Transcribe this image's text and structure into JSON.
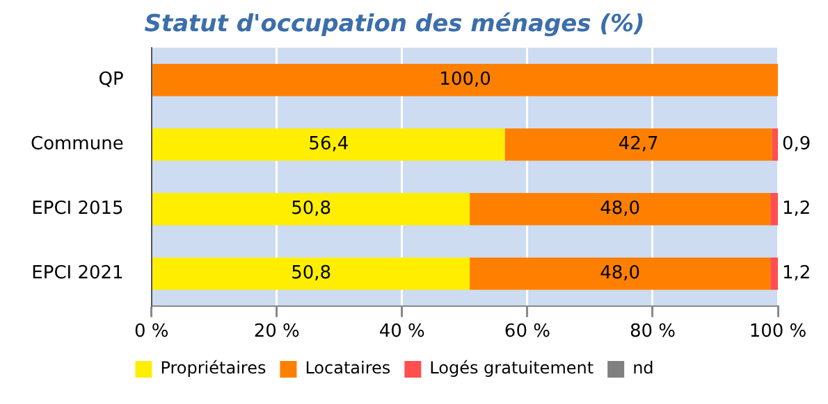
{
  "chart_data": {
    "type": "bar",
    "orientation": "horizontal",
    "stacked": true,
    "title": "Statut d'occupation des ménages (%)",
    "categories": [
      "QP",
      "Commune",
      "EPCI 2015",
      "EPCI 2021"
    ],
    "series": [
      {
        "name": "Propriétaires",
        "color": "#ffee00",
        "values": [
          null,
          56.4,
          50.8,
          50.8
        ],
        "value_labels": [
          null,
          "56,4",
          "50,8",
          "50,8"
        ]
      },
      {
        "name": "Locataires",
        "color": "#ff8000",
        "values": [
          100,
          42.7,
          48.0,
          48.0
        ],
        "value_labels": [
          "100,0",
          "42,7",
          "48,0",
          "48,0"
        ]
      },
      {
        "name": "Logés gratuitement",
        "color": "#ff4f4f",
        "values": [
          null,
          0.9,
          1.2,
          1.2
        ],
        "value_labels": [
          null,
          "0,9",
          "1,2",
          "1,2"
        ]
      },
      {
        "name": "nd",
        "color": "#808080",
        "values": [
          null,
          null,
          null,
          null
        ]
      }
    ],
    "xlim": [
      0,
      100
    ],
    "xticks": [
      {
        "value": 0,
        "label": "0 %"
      },
      {
        "value": 20,
        "label": "20 %"
      },
      {
        "value": 40,
        "label": "40 %"
      },
      {
        "value": 60,
        "label": "60 %"
      },
      {
        "value": 80,
        "label": "80 %"
      },
      {
        "value": 100,
        "label": "100 %"
      }
    ],
    "grid": "x",
    "legend": "bottom"
  }
}
